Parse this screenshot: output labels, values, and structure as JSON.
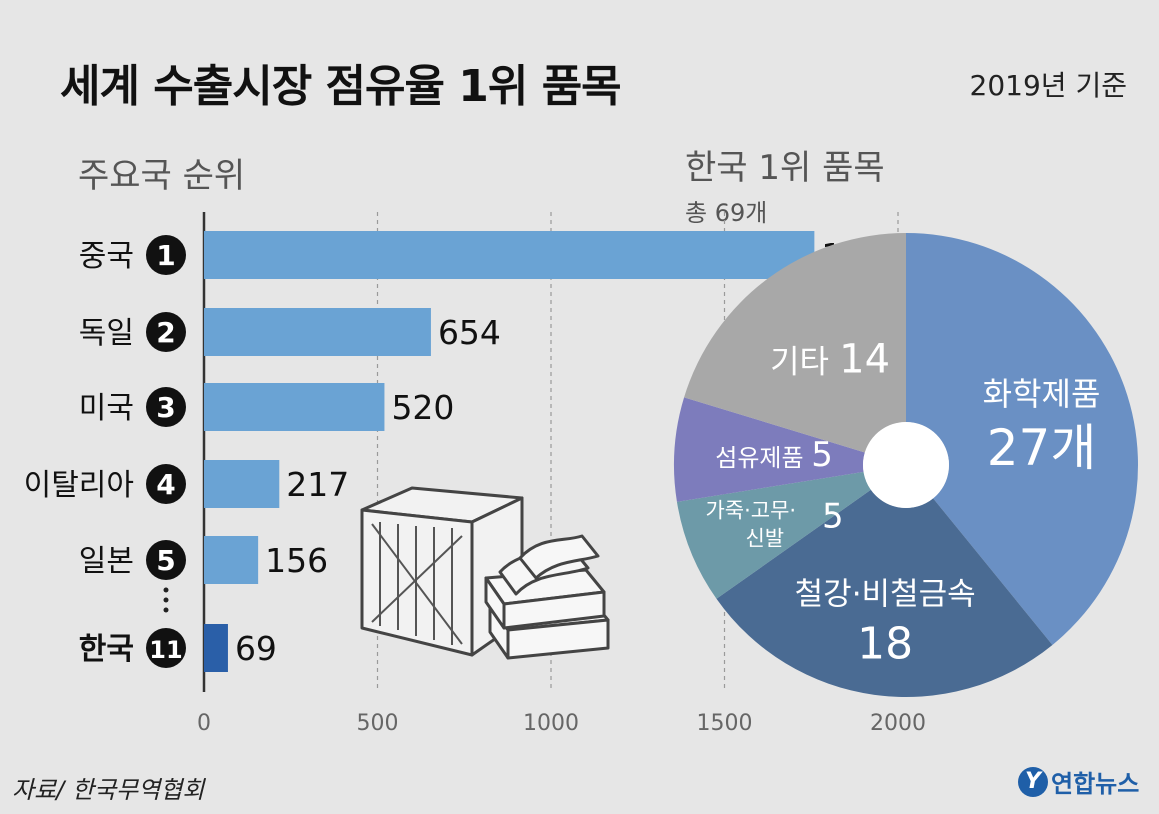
{
  "title": "세계 수출시장 점유율 1위 품목",
  "basis": "2019년 기준",
  "source": "자료/ 한국무역협회",
  "logo": {
    "mark": "Y",
    "text": "연합뉴스"
  },
  "chart_data": [
    {
      "type": "bar",
      "orientation": "horizontal",
      "title": "주요국 순위",
      "categories": [
        "중국",
        "독일",
        "미국",
        "이탈리아",
        "일본",
        "한국"
      ],
      "ranks": [
        "1",
        "2",
        "3",
        "4",
        "5",
        "11"
      ],
      "values": [
        1759,
        654,
        520,
        217,
        156,
        69
      ],
      "value_labels": [
        "1,759개",
        "654",
        "520",
        "217",
        "156",
        "69"
      ],
      "xlim": [
        0,
        2000
      ],
      "xticks": [
        0,
        500,
        1000,
        1500,
        2000
      ],
      "grid": true,
      "colors": {
        "bar": "#6aa3d4",
        "highlight": "#2a5fa8"
      }
    },
    {
      "type": "pie",
      "style": "donut",
      "title": "한국 1위 품목",
      "subtitle": "총 69개",
      "slices": [
        {
          "label": "화학제품",
          "value": 27,
          "value_label": "27개",
          "color": "#6a90c4"
        },
        {
          "label": "철강·비철금속",
          "value": 18,
          "value_label": "18",
          "color": "#4a6b93"
        },
        {
          "label": "가죽·고무·신발",
          "value": 5,
          "value_label": "5",
          "color": "#6d9aa8"
        },
        {
          "label": "섬유제품",
          "value": 5,
          "value_label": "5",
          "color": "#7d7cbc"
        },
        {
          "label": "기타",
          "value": 14,
          "value_label": "14",
          "color": "#a8a8a8"
        }
      ]
    }
  ]
}
